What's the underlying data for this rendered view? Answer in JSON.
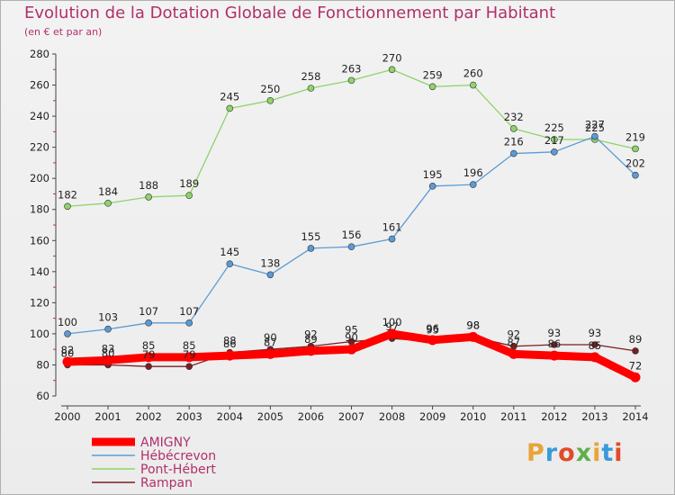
{
  "title": "Evolution de la Dotation Globale de Fonctionnement par Habitant",
  "subtitle": "(en € et par an)",
  "logo": {
    "text": "Proxiti",
    "colors": [
      "#e8a43a",
      "#3a9ad9",
      "#e04b2a",
      "#5db04a"
    ]
  },
  "chart_data": {
    "type": "line",
    "x": [
      2000,
      2001,
      2002,
      2003,
      2004,
      2005,
      2006,
      2007,
      2008,
      2009,
      2010,
      2011,
      2012,
      2013,
      2014
    ],
    "ylim": [
      60,
      280
    ],
    "yticks": [
      60,
      80,
      100,
      120,
      140,
      160,
      180,
      200,
      220,
      240,
      260,
      280
    ],
    "grid": false,
    "legend_position": "bottom-left",
    "series": [
      {
        "name": "Rampan",
        "color": "#7a1e22",
        "values": [
          80,
          80,
          79,
          79,
          88,
          90,
          92,
          95,
          97,
          95,
          98,
          92,
          93,
          93,
          89
        ]
      },
      {
        "name": "Pont-Hébert",
        "color": "#8fd36a",
        "values": [
          182,
          184,
          188,
          189,
          245,
          250,
          258,
          263,
          270,
          259,
          260,
          232,
          225,
          225,
          219
        ]
      },
      {
        "name": "Hébécrevon",
        "color": "#5b9bd5",
        "values": [
          100,
          103,
          107,
          107,
          145,
          138,
          155,
          156,
          161,
          195,
          196,
          216,
          217,
          227,
          202
        ]
      },
      {
        "name": "AMIGNY",
        "color": "#ff0000",
        "values": [
          82,
          83,
          85,
          85,
          86,
          87,
          89,
          90,
          100,
          96,
          98,
          87,
          86,
          85,
          72
        ]
      }
    ],
    "legend_order": [
      "AMIGNY",
      "Hébécrevon",
      "Pont-Hébert",
      "Rampan"
    ]
  }
}
